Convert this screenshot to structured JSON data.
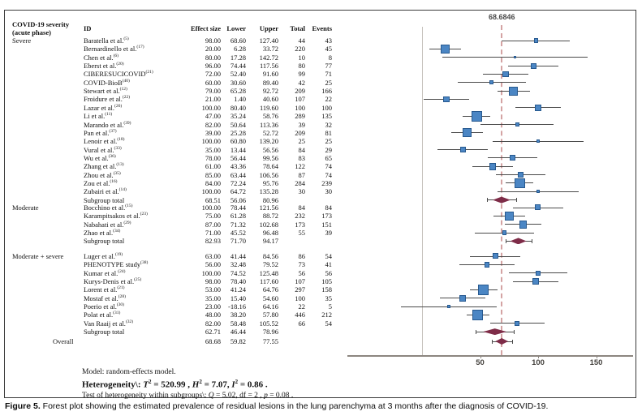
{
  "figure": {
    "table_headers": {
      "severity_line1": "COVID-19 severity",
      "severity_line2": "(acute phase)",
      "id": "ID",
      "effect_size": "Effect size",
      "lower": "Lower",
      "upper": "Upper",
      "total": "Total",
      "events": "Events"
    },
    "notes": {
      "model": "Model: random-effects model.",
      "heterogeneity_segments": [
        {
          "t": "Heterogeneity\\: "
        },
        {
          "t": "T",
          "i": true
        },
        {
          "t": "2",
          "sup": true
        },
        {
          "t": " = 520.99 , "
        },
        {
          "t": "H",
          "i": true
        },
        {
          "t": "2",
          "sup": true
        },
        {
          "t": " = 7.07, "
        },
        {
          "t": "I",
          "i": true
        },
        {
          "t": "2",
          "sup": true
        },
        {
          "t": " = 0.86 ."
        }
      ],
      "test_segments": [
        {
          "t": "Test of heterogeneity within subgroups\\: "
        },
        {
          "t": "Q",
          "i": true
        },
        {
          "t": " = 5.02, df = 2 , "
        },
        {
          "t": "p",
          "i": true
        },
        {
          "t": " = 0.08 ."
        }
      ]
    }
  },
  "caption": {
    "prefix": "Figure 5.",
    "text": " Forest plot showing the estimated prevalence of residual lesions in the lung parenchyma at 3 months after the diagnosis of COVID-19."
  },
  "chart_data": {
    "type": "forest",
    "x_ticks": [
      50,
      100,
      150
    ],
    "reference_line_value": 68.6846,
    "reference_label": "68.6846",
    "colors": {
      "square_fill": "#4b86c4",
      "square_border": "#27598f",
      "diamond": "#7e2c48",
      "reference_dash": "#d4a3a3",
      "axis": "#8c8680"
    },
    "groups": [
      {
        "name": "Severe",
        "studies": [
          {
            "id": "Baratella et al.",
            "ref": "5",
            "effect": 98.0,
            "lower": 68.6,
            "upper": 127.4,
            "total": 44,
            "events": 43
          },
          {
            "id": "Bernardinello et al.",
            "ref": "17",
            "effect": 20.0,
            "lower": 6.28,
            "upper": 33.72,
            "total": 220,
            "events": 45
          },
          {
            "id": "Chen et al.",
            "ref": "6",
            "effect": 80.0,
            "lower": 17.28,
            "upper": 142.72,
            "total": 10,
            "events": 8
          },
          {
            "id": "Eberst et al.",
            "ref": "20",
            "effect": 96.0,
            "lower": 74.44,
            "upper": 117.56,
            "total": 80,
            "events": 77
          },
          {
            "id": "CIBERESUCICOVID",
            "ref": "21",
            "effect": 72.0,
            "lower": 52.4,
            "upper": 91.6,
            "total": 99,
            "events": 71
          },
          {
            "id": "COVID-BioB",
            "ref": "40",
            "effect": 60.0,
            "lower": 30.6,
            "upper": 89.4,
            "total": 42,
            "events": 25
          },
          {
            "id": "Stewart et al.",
            "ref": "12",
            "effect": 79.0,
            "lower": 65.28,
            "upper": 92.72,
            "total": 209,
            "events": 166
          },
          {
            "id": "Froidure et al.",
            "ref": "22",
            "effect": 21.0,
            "lower": 1.4,
            "upper": 40.6,
            "total": 107,
            "events": 22
          },
          {
            "id": "Lazar et al.",
            "ref": "26",
            "effect": 100.0,
            "lower": 80.4,
            "upper": 119.6,
            "total": 100,
            "events": 100
          },
          {
            "id": "Li et al.",
            "ref": "11",
            "effect": 47.0,
            "lower": 35.24,
            "upper": 58.76,
            "total": 289,
            "events": 135
          },
          {
            "id": "Marando et al.",
            "ref": "39",
            "effect": 82.0,
            "lower": 50.64,
            "upper": 113.36,
            "total": 39,
            "events": 32
          },
          {
            "id": "Pan et al.",
            "ref": "37",
            "effect": 39.0,
            "lower": 25.28,
            "upper": 52.72,
            "total": 209,
            "events": 81
          },
          {
            "id": "Lenoir et al.",
            "ref": "18",
            "effect": 100.0,
            "lower": 60.8,
            "upper": 139.2,
            "total": 25,
            "events": 25
          },
          {
            "id": "Vural et al.",
            "ref": "33",
            "effect": 35.0,
            "lower": 13.44,
            "upper": 56.56,
            "total": 84,
            "events": 29
          },
          {
            "id": "Wu et al.",
            "ref": "36",
            "effect": 78.0,
            "lower": 56.44,
            "upper": 99.56,
            "total": 83,
            "events": 65
          },
          {
            "id": "Zhang et al.",
            "ref": "13",
            "effect": 61.0,
            "lower": 43.36,
            "upper": 78.64,
            "total": 122,
            "events": 74
          },
          {
            "id": "Zhou et al.",
            "ref": "35",
            "effect": 85.0,
            "lower": 63.44,
            "upper": 106.56,
            "total": 87,
            "events": 74
          },
          {
            "id": "Zou et al.",
            "ref": "16",
            "effect": 84.0,
            "lower": 72.24,
            "upper": 95.76,
            "total": 284,
            "events": 239
          },
          {
            "id": "Zubairi et al.",
            "ref": "14",
            "effect": 100.0,
            "lower": 64.72,
            "upper": 135.28,
            "total": 30,
            "events": 30
          }
        ],
        "subtotal": {
          "label": "Subgroup total",
          "effect": 68.51,
          "lower": 56.06,
          "upper": 80.96
        }
      },
      {
        "name": "Moderate",
        "studies": [
          {
            "id": "Bocchino et al.",
            "ref": "15",
            "effect": 100.0,
            "lower": 78.44,
            "upper": 121.56,
            "total": 84,
            "events": 84
          },
          {
            "id": "Karampitsakos et al.",
            "ref": "23",
            "effect": 75.0,
            "lower": 61.28,
            "upper": 88.72,
            "total": 232,
            "events": 173
          },
          {
            "id": "Nabahati et al.",
            "ref": "29",
            "effect": 87.0,
            "lower": 71.32,
            "upper": 102.68,
            "total": 173,
            "events": 151
          },
          {
            "id": "Zhao et al.",
            "ref": "34",
            "effect": 71.0,
            "lower": 45.52,
            "upper": 96.48,
            "total": 55,
            "events": 39
          }
        ],
        "subtotal": {
          "label": "Subgroup total",
          "effect": 82.93,
          "lower": 71.7,
          "upper": 94.17
        }
      },
      {
        "name": "Moderate + severe",
        "studies": [
          {
            "id": "Luger et al.",
            "ref": "19",
            "effect": 63.0,
            "lower": 41.44,
            "upper": 84.56,
            "total": 86,
            "events": 54
          },
          {
            "id": "PHENOTYPE study",
            "ref": "38",
            "effect": 56.0,
            "lower": 32.48,
            "upper": 79.52,
            "total": 73,
            "events": 41
          },
          {
            "id": "Kumar et al.",
            "ref": "24",
            "effect": 100.0,
            "lower": 74.52,
            "upper": 125.48,
            "total": 56,
            "events": 56
          },
          {
            "id": "Kurys-Denis et al.",
            "ref": "25",
            "effect": 98.0,
            "lower": 78.4,
            "upper": 117.6,
            "total": 107,
            "events": 105
          },
          {
            "id": "Lorent et al.",
            "ref": "21",
            "effect": 53.0,
            "lower": 41.24,
            "upper": 64.76,
            "total": 297,
            "events": 158
          },
          {
            "id": "Mostaf et al.",
            "ref": "28",
            "effect": 35.0,
            "lower": 15.4,
            "upper": 54.6,
            "total": 100,
            "events": 35
          },
          {
            "id": "Poerio et al.",
            "ref": "30",
            "effect": 23.0,
            "lower": -18.16,
            "upper": 64.16,
            "total": 22,
            "events": 5
          },
          {
            "id": "Polat et al.",
            "ref": "31",
            "effect": 48.0,
            "lower": 38.2,
            "upper": 57.8,
            "total": 446,
            "events": 212
          },
          {
            "id": "Van Raaij et al.",
            "ref": "32",
            "effect": 82.0,
            "lower": 58.48,
            "upper": 105.52,
            "total": 66,
            "events": 54
          }
        ],
        "subtotal": {
          "label": "Subgroup total",
          "effect": 62.71,
          "lower": 46.44,
          "upper": 78.96
        }
      }
    ],
    "overall": {
      "label": "Overall",
      "effect": 68.68,
      "lower": 59.82,
      "upper": 77.55
    }
  }
}
